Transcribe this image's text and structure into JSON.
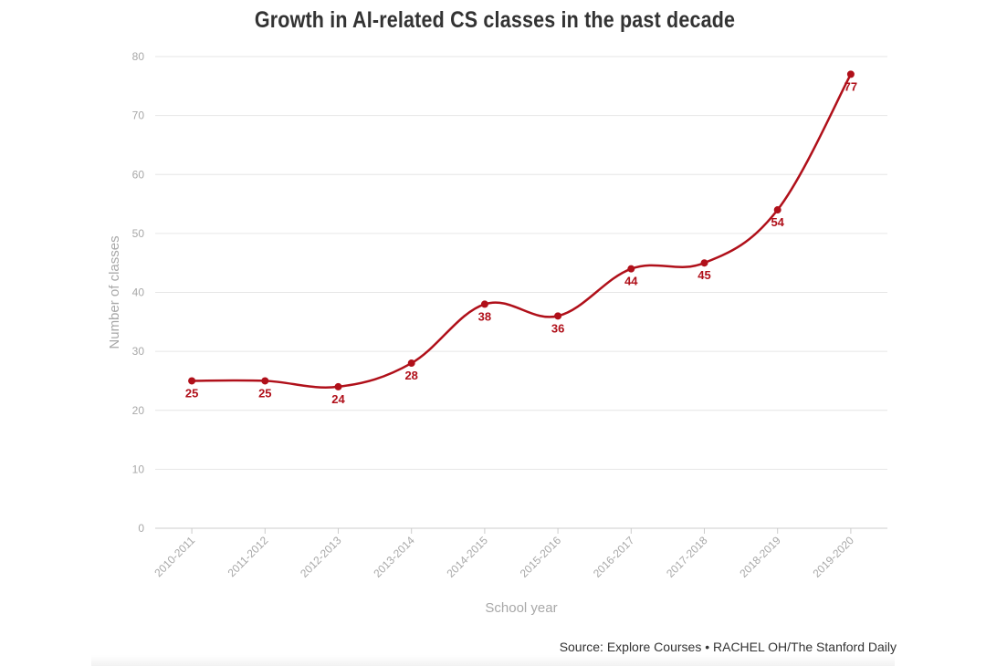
{
  "chart_data": {
    "type": "line",
    "title": "Growth in AI-related CS classes in the past decade",
    "xlabel": "School year",
    "ylabel": "Number of classes",
    "ylim": [
      0,
      80
    ],
    "yticks": [
      0,
      10,
      20,
      30,
      40,
      50,
      60,
      70,
      80
    ],
    "grid": true,
    "smooth": true,
    "color": "#b0101a",
    "categories": [
      "2010-2011",
      "2011-2012",
      "2012-2013",
      "2013-2014",
      "2014-2015",
      "2015-2016",
      "2016-2017",
      "2017-2018",
      "2018-2019",
      "2019-2020"
    ],
    "values": [
      25,
      25,
      24,
      28,
      38,
      36,
      44,
      45,
      54,
      77
    ],
    "source": "Source: Explore Courses • RACHEL OH/The Stanford Daily"
  }
}
